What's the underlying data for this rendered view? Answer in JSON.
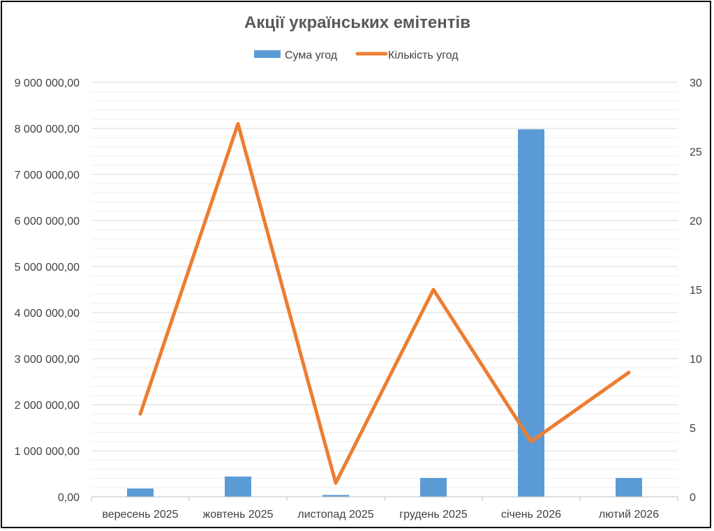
{
  "chart_data": {
    "type": "bar",
    "title": "Акції українських емітентів",
    "categories": [
      "вересень 2025",
      "жовтень 2025",
      "листопад 2025",
      "грудень 2025",
      "січень 2026",
      "лютий 2026"
    ],
    "series": [
      {
        "name": "Сума угод",
        "type": "bar",
        "axis": "left",
        "color": "#5B9BD5",
        "values": [
          180000,
          440000,
          40000,
          410000,
          7980000,
          410000
        ]
      },
      {
        "name": "Кількість угод",
        "type": "line",
        "axis": "right",
        "color": "#ED7D31",
        "values": [
          6,
          27,
          1,
          15,
          4,
          9
        ]
      }
    ],
    "y_left": {
      "ylim": [
        0,
        9000000
      ],
      "ticks": [
        "0,00",
        "1 000 000,00",
        "2 000 000,00",
        "3 000 000,00",
        "4 000 000,00",
        "5 000 000,00",
        "6 000 000,00",
        "7 000 000,00",
        "8 000 000,00",
        "9 000 000,00"
      ]
    },
    "y_right": {
      "ylim": [
        0,
        30
      ],
      "ticks": [
        "0",
        "5",
        "10",
        "15",
        "20",
        "25",
        "30"
      ]
    },
    "grid": true,
    "legend_position": "top"
  }
}
